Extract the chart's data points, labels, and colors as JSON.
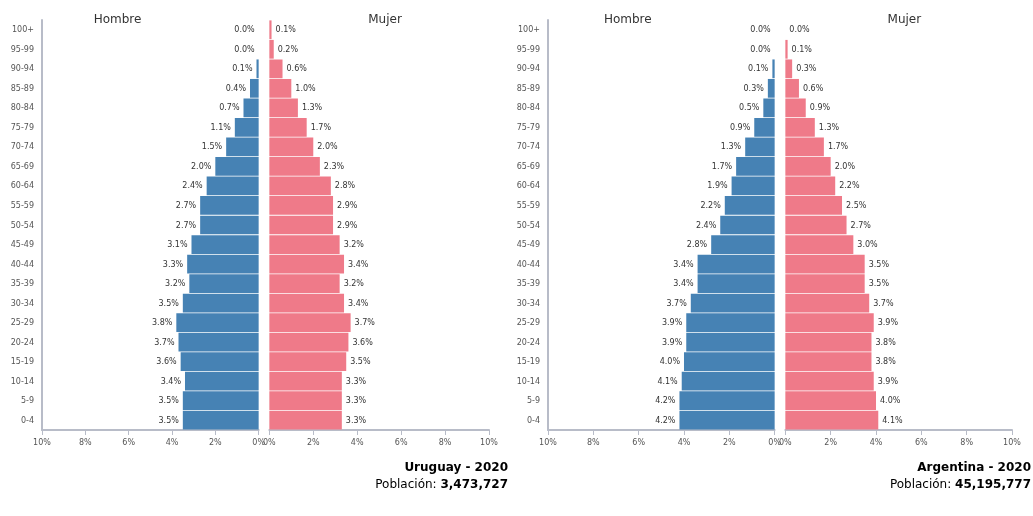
{
  "chart_data": [
    {
      "type": "bar",
      "orientation": "horizontal",
      "title": "Hombre",
      "categories": [
        "100+",
        "95-99",
        "90-94",
        "85-89",
        "80-84",
        "75-79",
        "70-74",
        "65-69",
        "60-64",
        "55-59",
        "50-54",
        "45-49",
        "40-44",
        "35-39",
        "30-34",
        "25-29",
        "20-24",
        "15-19",
        "10-14",
        "5-9",
        "0-4"
      ],
      "values": [
        0.0,
        0.0,
        0.1,
        0.4,
        0.7,
        1.1,
        1.5,
        2.0,
        2.4,
        2.7,
        2.7,
        3.1,
        3.3,
        3.2,
        3.5,
        3.8,
        3.7,
        3.6,
        3.4,
        3.5,
        3.5
      ],
      "value_labels": [
        "0.0%",
        "0.0%",
        "0.1%",
        "0.4%",
        "0.7%",
        "1.1%",
        "1.5%",
        "2.0%",
        "2.4%",
        "2.7%",
        "2.7%",
        "3.1%",
        "3.3%",
        "3.2%",
        "3.5%",
        "3.8%",
        "3.7%",
        "3.6%",
        "3.4%",
        "3.5%",
        "3.5%"
      ],
      "color": "#4682b4",
      "xlim": [
        10,
        0
      ],
      "xticks": [
        {
          "value": 10,
          "label": "10%"
        },
        {
          "value": 8,
          "label": "8%"
        },
        {
          "value": 6,
          "label": "6%"
        },
        {
          "value": 4,
          "label": "4%"
        },
        {
          "value": 2,
          "label": "2%"
        },
        {
          "value": 0,
          "label": "0%"
        }
      ],
      "grid": false
    },
    {
      "type": "bar",
      "orientation": "horizontal",
      "title": "Mujer",
      "categories": [
        null,
        null,
        null,
        null,
        null,
        null,
        null,
        null,
        null,
        null,
        null,
        null,
        null,
        null,
        null,
        null,
        null,
        null,
        null,
        null,
        null
      ],
      "values": [
        0.1,
        0.2,
        0.6,
        1.0,
        1.3,
        1.7,
        2.0,
        2.3,
        2.8,
        2.9,
        2.9,
        3.2,
        3.4,
        3.2,
        3.4,
        3.7,
        3.6,
        3.5,
        3.3,
        3.3,
        3.3
      ],
      "value_labels": [
        "0.1%",
        "0.2%",
        "0.6%",
        "1.0%",
        "1.3%",
        "1.7%",
        "2.0%",
        "2.3%",
        "2.8%",
        "2.9%",
        "2.9%",
        "3.2%",
        "3.4%",
        "3.2%",
        "3.4%",
        "3.7%",
        "3.6%",
        "3.5%",
        "3.3%",
        "3.3%",
        "3.3%"
      ],
      "color": "#ef7a89",
      "xlim": [
        0,
        10
      ],
      "xticks": [
        {
          "value": 0,
          "label": "0%"
        },
        {
          "value": 2,
          "label": "2%"
        },
        {
          "value": 4,
          "label": "4%"
        },
        {
          "value": 6,
          "label": "6%"
        },
        {
          "value": 8,
          "label": "8%"
        },
        {
          "value": 10,
          "label": "10%"
        }
      ],
      "grid": false,
      "tick_labels": "x",
      "annotations": [
        "Uruguay - 2020",
        "Población: 3,473,727"
      ]
    },
    {
      "type": "bar",
      "orientation": "horizontal",
      "title": "Hombre",
      "categories": [
        "100+",
        "95-99",
        "90-94",
        "85-89",
        "80-84",
        "75-79",
        "70-74",
        "65-69",
        "60-64",
        "55-59",
        "50-54",
        "45-49",
        "40-44",
        "35-39",
        "30-34",
        "25-29",
        "20-24",
        "15-19",
        "10-14",
        "5-9",
        "0-4"
      ],
      "values": [
        0.0,
        0.0,
        0.1,
        0.3,
        0.5,
        0.9,
        1.3,
        1.7,
        1.9,
        2.2,
        2.4,
        2.8,
        3.4,
        3.4,
        3.7,
        3.9,
        3.9,
        4.0,
        4.1,
        4.2,
        4.2
      ],
      "value_labels": [
        "0.0%",
        "0.0%",
        "0.1%",
        "0.3%",
        "0.5%",
        "0.9%",
        "1.3%",
        "1.7%",
        "1.9%",
        "2.2%",
        "2.4%",
        "2.8%",
        "3.4%",
        "3.4%",
        "3.7%",
        "3.9%",
        "3.9%",
        "4.0%",
        "4.1%",
        "4.2%",
        "4.2%"
      ],
      "color": "#4682b4",
      "xlim": [
        10,
        0
      ],
      "xticks": [
        {
          "value": 10,
          "label": "10%"
        },
        {
          "value": 8,
          "label": "8%"
        },
        {
          "value": 6,
          "label": "6%"
        },
        {
          "value": 4,
          "label": "4%"
        },
        {
          "value": 2,
          "label": "2%"
        },
        {
          "value": 0,
          "label": "0%"
        }
      ],
      "grid": false
    },
    {
      "type": "bar",
      "orientation": "horizontal",
      "title": "Mujer",
      "categories": [
        null,
        null,
        null,
        null,
        null,
        null,
        null,
        null,
        null,
        null,
        null,
        null,
        null,
        null,
        null,
        null,
        null,
        null,
        null,
        null,
        null
      ],
      "values": [
        0.0,
        0.1,
        0.3,
        0.6,
        0.9,
        1.3,
        1.7,
        2.0,
        2.2,
        2.5,
        2.7,
        3.0,
        3.5,
        3.5,
        3.7,
        3.9,
        3.8,
        3.8,
        3.9,
        4.0,
        4.1
      ],
      "value_labels": [
        "0.0%",
        "0.1%",
        "0.3%",
        "0.6%",
        "0.9%",
        "1.3%",
        "1.7%",
        "2.0%",
        "2.2%",
        "2.5%",
        "2.7%",
        "3.0%",
        "3.5%",
        "3.5%",
        "3.7%",
        "3.9%",
        "3.8%",
        "3.8%",
        "3.9%",
        "4.0%",
        "4.1%"
      ],
      "color": "#ef7a89",
      "xlim": [
        0,
        10
      ],
      "xticks": [
        {
          "value": 0,
          "label": "0%"
        },
        {
          "value": 2,
          "label": "2%"
        },
        {
          "value": 4,
          "label": "4%"
        },
        {
          "value": 6,
          "label": "6%"
        },
        {
          "value": 8,
          "label": "8%"
        },
        {
          "value": 10,
          "label": "10%"
        }
      ],
      "grid": false,
      "tick_labels": "x",
      "annotations": [
        "Argentina - 2020",
        "Población: 45,195,777"
      ]
    }
  ]
}
